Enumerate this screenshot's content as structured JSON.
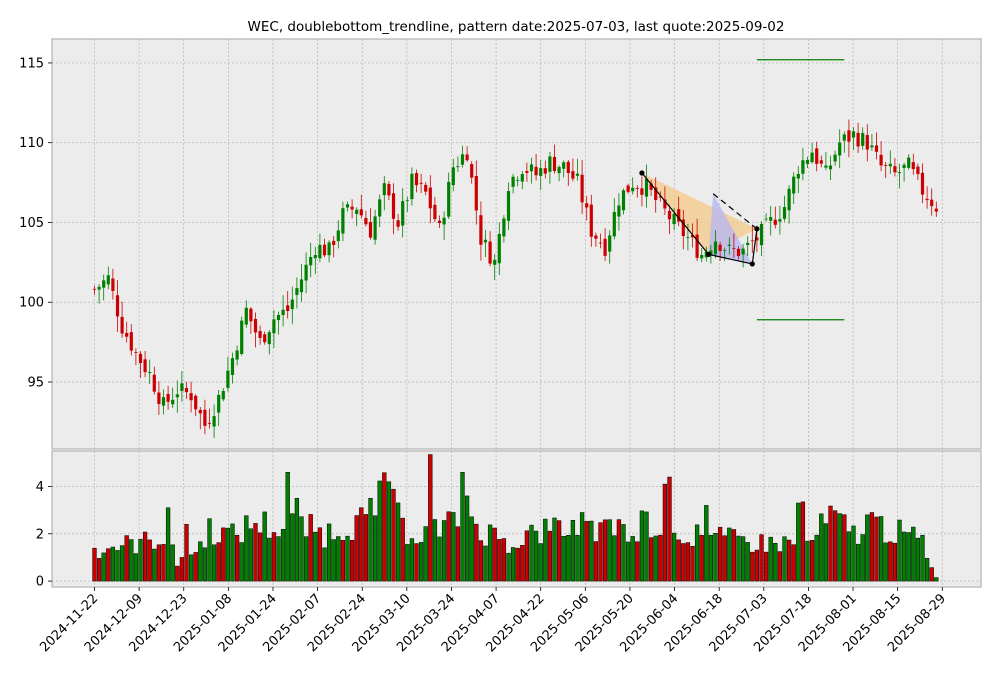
{
  "chart_data": {
    "type": "candlestick",
    "title": "WEC, doublebottom_trendline, pattern date:2025-07-03, last quote:2025-09-02",
    "colors": {
      "up": "#008000",
      "down": "#cc0000",
      "panel_bg": "#ececec",
      "grid": "#b0b0b0",
      "triangle_fill_1": "#f5c98a",
      "triangle_fill_2": "#b8b8f0",
      "level_line": "#008000",
      "pattern_line": "#000000"
    },
    "price_axis": {
      "ylim": [
        90.8,
        116.5
      ],
      "ticks": [
        95,
        100,
        105,
        110,
        115
      ]
    },
    "volume_axis": {
      "ylim": [
        -0.25,
        5.5
      ],
      "ticks": [
        0,
        2,
        4
      ]
    },
    "x_ticks": [
      "2024-11-22",
      "2024-12-09",
      "2024-12-23",
      "2025-01-08",
      "2025-01-24",
      "2025-02-07",
      "2025-02-24",
      "2025-03-10",
      "2025-03-24",
      "2025-04-07",
      "2025-04-22",
      "2025-05-06",
      "2025-05-20",
      "2025-06-04",
      "2025-06-18",
      "2025-07-03",
      "2025-07-18",
      "2025-08-01",
      "2025-08-15",
      "2025-08-29"
    ],
    "close_anchors": [
      [
        0,
        100.8
      ],
      [
        3,
        101.5
      ],
      [
        6,
        98.5
      ],
      [
        9,
        96.8
      ],
      [
        12,
        95.5
      ],
      [
        15,
        93.5
      ],
      [
        18,
        94.5
      ],
      [
        21,
        94.2
      ],
      [
        24,
        92.3
      ],
      [
        27,
        94.0
      ],
      [
        30,
        96.5
      ],
      [
        33,
        99.5
      ],
      [
        36,
        97.5
      ],
      [
        39,
        99.0
      ],
      [
        42,
        99.5
      ],
      [
        45,
        101.5
      ],
      [
        48,
        103.5
      ],
      [
        51,
        103.2
      ],
      [
        54,
        105.5
      ],
      [
        57,
        106.0
      ],
      [
        60,
        104.5
      ],
      [
        63,
        107.0
      ],
      [
        66,
        105.0
      ],
      [
        69,
        107.5
      ],
      [
        72,
        106.8
      ],
      [
        75,
        104.5
      ],
      [
        78,
        108.5
      ],
      [
        81,
        109.5
      ],
      [
        84,
        104.0
      ],
      [
        87,
        102.5
      ],
      [
        90,
        107.5
      ],
      [
        93,
        108.5
      ],
      [
        96,
        108.0
      ],
      [
        99,
        108.8
      ],
      [
        102,
        108.5
      ],
      [
        105,
        107.5
      ],
      [
        108,
        104.5
      ],
      [
        111,
        103.5
      ],
      [
        114,
        106.5
      ],
      [
        117,
        107.5
      ],
      [
        120,
        107.2
      ],
      [
        123,
        106.0
      ],
      [
        126,
        105.0
      ],
      [
        129,
        104.0
      ],
      [
        132,
        103.0
      ],
      [
        135,
        104.0
      ],
      [
        138,
        103.2
      ],
      [
        141,
        103.2
      ],
      [
        144,
        104.0
      ],
      [
        147,
        105.0
      ],
      [
        150,
        106.0
      ],
      [
        153,
        108.5
      ],
      [
        156,
        109.5
      ],
      [
        159,
        108.0
      ],
      [
        162,
        110.0
      ],
      [
        165,
        110.5
      ],
      [
        168,
        110.0
      ],
      [
        171,
        108.5
      ],
      [
        174,
        108.0
      ],
      [
        177,
        108.5
      ],
      [
        180,
        107.0
      ],
      [
        183,
        106.0
      ]
    ],
    "volume_anchors": [
      [
        0,
        1.3
      ],
      [
        5,
        1.5
      ],
      [
        10,
        1.6
      ],
      [
        15,
        1.9
      ],
      [
        18,
        0.9
      ],
      [
        22,
        1.2
      ],
      [
        25,
        2.2
      ],
      [
        30,
        1.9
      ],
      [
        35,
        2.5
      ],
      [
        40,
        2.2
      ],
      [
        45,
        2.3
      ],
      [
        50,
        2.0
      ],
      [
        55,
        2.4
      ],
      [
        60,
        2.6
      ],
      [
        63,
        3.8
      ],
      [
        67,
        2.2
      ],
      [
        72,
        2.0
      ],
      [
        77,
        2.3
      ],
      [
        80,
        3.0
      ],
      [
        85,
        2.1
      ],
      [
        90,
        1.6
      ],
      [
        95,
        2.0
      ],
      [
        100,
        2.2
      ],
      [
        105,
        2.3
      ],
      [
        110,
        2.1
      ],
      [
        115,
        2.0
      ],
      [
        120,
        2.6
      ],
      [
        125,
        2.0
      ],
      [
        130,
        2.0
      ],
      [
        135,
        1.8
      ],
      [
        140,
        1.7
      ],
      [
        145,
        1.6
      ],
      [
        150,
        1.6
      ],
      [
        155,
        1.5
      ],
      [
        160,
        2.7
      ],
      [
        165,
        2.0
      ],
      [
        170,
        2.4
      ],
      [
        175,
        2.0
      ],
      [
        180,
        1.7
      ],
      [
        183,
        0.15
      ]
    ],
    "volume_spikes": [
      [
        16,
        3.1
      ],
      [
        20,
        2.4
      ],
      [
        42,
        4.6
      ],
      [
        44,
        3.5
      ],
      [
        60,
        3.5
      ],
      [
        64,
        4.2
      ],
      [
        73,
        5.35
      ],
      [
        80,
        4.6
      ],
      [
        81,
        3.6
      ],
      [
        106,
        2.9
      ],
      [
        114,
        2.6
      ],
      [
        124,
        4.1
      ],
      [
        125,
        4.4
      ],
      [
        133,
        3.2
      ],
      [
        153,
        3.3
      ],
      [
        154,
        3.35
      ],
      [
        168,
        2.8
      ],
      [
        169,
        2.9
      ]
    ],
    "pattern": {
      "points": [
        {
          "i": 119,
          "price": 108.1
        },
        {
          "i": 133.5,
          "price": 103.0
        },
        {
          "i": 143,
          "price": 102.4
        },
        {
          "i": 144,
          "price": 104.6
        },
        {
          "i": 134.5,
          "price": 106.8
        }
      ],
      "upper_level": {
        "price": 115.2,
        "from": 144,
        "to": 163
      },
      "lower_level": {
        "price": 98.9,
        "from": 144,
        "to": 163
      }
    }
  }
}
